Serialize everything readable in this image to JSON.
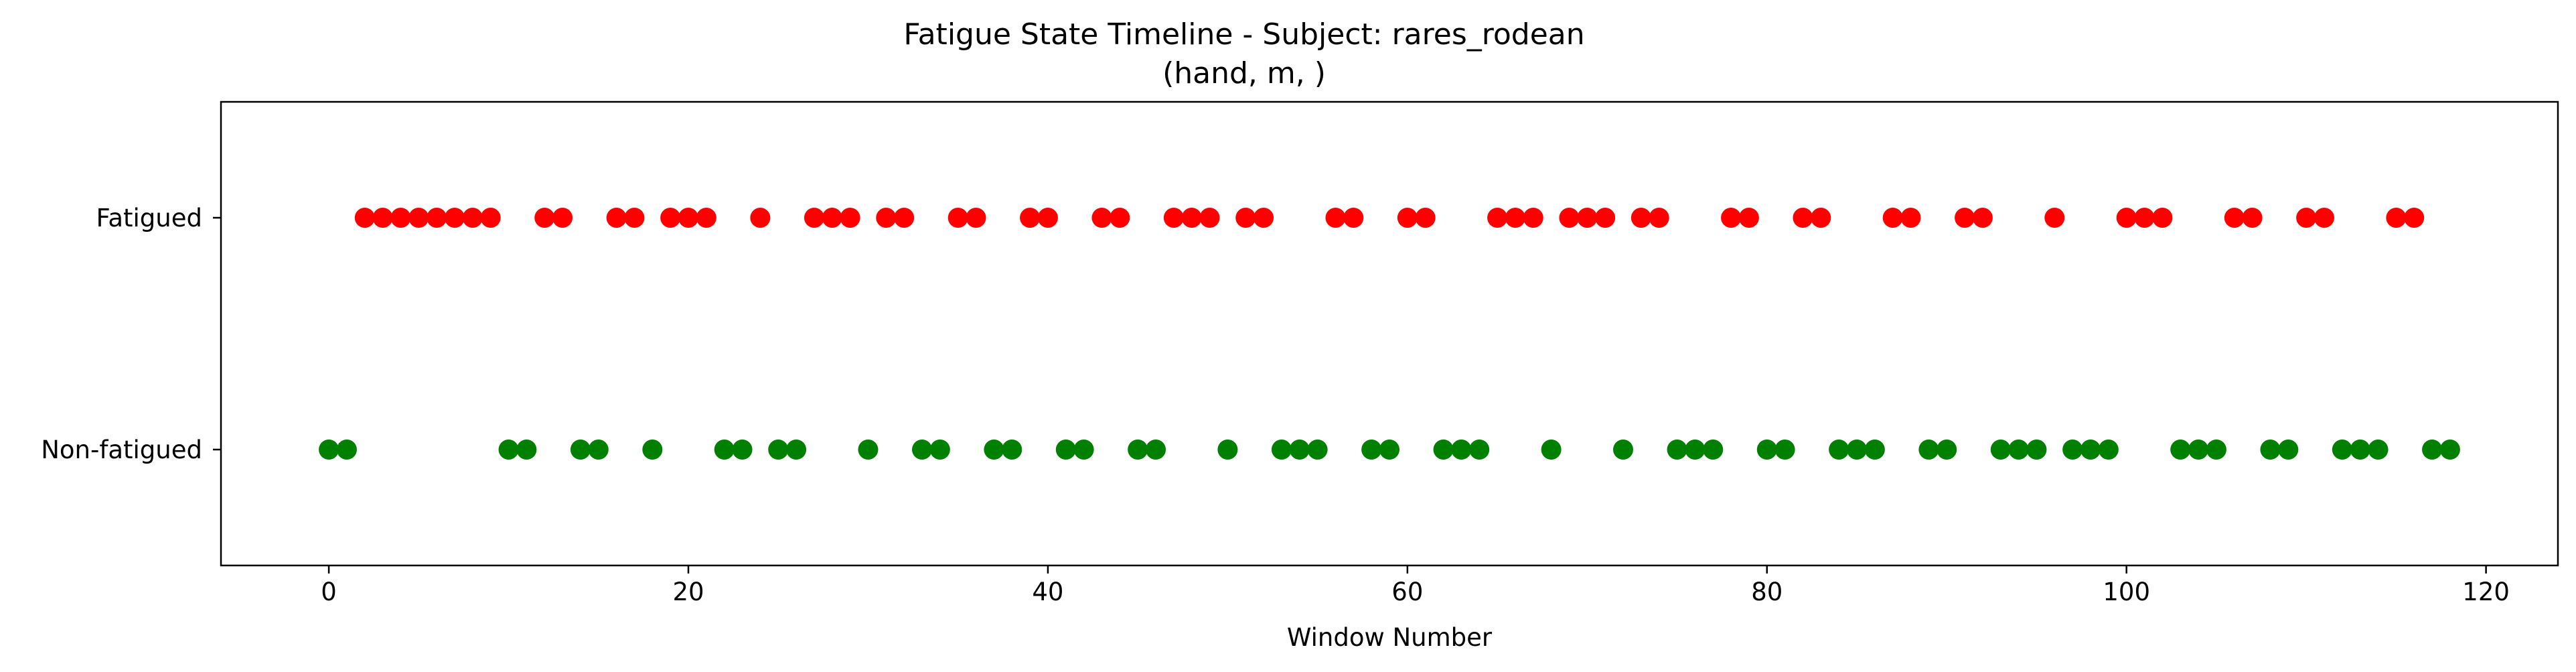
{
  "chart_data": {
    "type": "scatter",
    "title": "Fatigue State Timeline - Subject: rares_rodean",
    "subtitle": "(hand, m, )",
    "xlabel": "Window Number",
    "ylabel": "",
    "xlim": [
      -6,
      124
    ],
    "ylim": [
      -0.5,
      1.5
    ],
    "x_ticks": [
      0,
      20,
      40,
      60,
      80,
      100,
      120
    ],
    "y_ticks": [
      {
        "value": 0,
        "label": "Non-fatigued"
      },
      {
        "value": 1,
        "label": "Fatigued"
      }
    ],
    "grid": false,
    "series": [
      {
        "color": "#ff0000",
        "y": 1,
        "x": [
          2,
          3,
          4,
          5,
          6,
          7,
          8,
          9,
          12,
          13,
          16,
          17,
          19,
          20,
          21,
          24,
          27,
          28,
          29,
          31,
          32,
          35,
          36,
          39,
          40,
          43,
          44,
          47,
          48,
          49,
          51,
          52,
          56,
          57,
          60,
          61,
          65,
          66,
          67,
          69,
          70,
          71,
          73,
          74,
          78,
          79,
          82,
          83,
          87,
          88,
          91,
          92,
          96,
          100,
          101,
          102,
          106,
          107,
          110,
          111,
          115,
          116
        ]
      },
      {
        "color": "#008000",
        "y": 0,
        "x": [
          0,
          1,
          10,
          11,
          14,
          15,
          18,
          22,
          23,
          25,
          26,
          30,
          33,
          34,
          37,
          38,
          41,
          42,
          45,
          46,
          50,
          53,
          54,
          55,
          58,
          59,
          62,
          63,
          64,
          68,
          72,
          75,
          76,
          77,
          80,
          81,
          84,
          85,
          86,
          89,
          90,
          93,
          94,
          95,
          97,
          98,
          99,
          103,
          104,
          105,
          108,
          109,
          112,
          113,
          114,
          117,
          118
        ]
      }
    ]
  }
}
